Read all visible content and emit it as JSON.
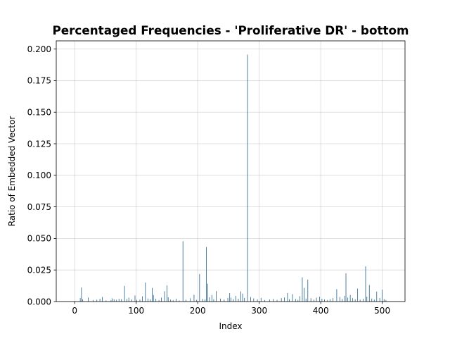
{
  "chart_data": {
    "type": "bar",
    "title": "Percentaged Frequencies - 'Proliferative DR' - bottom",
    "xlabel": "Index",
    "ylabel": "Ratio of Embedded Vector",
    "xlim": [
      -30,
      537
    ],
    "ylim": [
      0,
      0.2065
    ],
    "x_ticks": [
      0,
      100,
      200,
      300,
      400,
      500
    ],
    "x_tick_labels": [
      "0",
      "100",
      "200",
      "300",
      "400",
      "500"
    ],
    "y_ticks": [
      0,
      0.025,
      0.05,
      0.075,
      0.1,
      0.125,
      0.15,
      0.175,
      0.2
    ],
    "y_tick_labels": [
      "0.000",
      "0.025",
      "0.050",
      "0.075",
      "0.100",
      "0.125",
      "0.150",
      "0.175",
      "0.200"
    ],
    "grid": true,
    "bar_color": "#1f5f8b",
    "x": [
      9,
      11,
      13,
      22,
      30,
      36,
      41,
      45,
      51,
      59,
      61,
      64,
      68,
      72,
      76,
      81,
      85,
      88,
      93,
      98,
      101,
      106,
      110,
      115,
      119,
      123,
      126,
      128,
      132,
      137,
      141,
      146,
      150,
      152,
      156,
      160,
      165,
      170,
      176,
      181,
      188,
      194,
      198,
      203,
      208,
      212,
      214,
      216,
      219,
      223,
      226,
      230,
      237,
      243,
      249,
      252,
      254,
      258,
      262,
      266,
      270,
      273,
      276,
      281,
      286,
      291,
      297,
      303,
      309,
      317,
      323,
      329,
      336,
      341,
      346,
      349,
      354,
      359,
      363,
      366,
      370,
      373,
      376,
      379,
      384,
      389,
      393,
      398,
      402,
      406,
      411,
      415,
      420,
      426,
      431,
      435,
      439,
      441,
      444,
      448,
      452,
      456,
      460,
      464,
      469,
      473,
      475,
      479,
      483,
      487,
      491,
      496,
      500,
      503,
      506
    ],
    "values": [
      0.0028,
      0.0112,
      0.0018,
      0.0032,
      0.0012,
      0.0015,
      0.0022,
      0.0036,
      0.0009,
      0.0011,
      0.0025,
      0.0018,
      0.0014,
      0.0022,
      0.0019,
      0.0124,
      0.0021,
      0.0031,
      0.0017,
      0.0048,
      0.0013,
      0.0016,
      0.0041,
      0.0151,
      0.0024,
      0.0018,
      0.0108,
      0.0052,
      0.0022,
      0.0012,
      0.0031,
      0.0082,
      0.0128,
      0.0034,
      0.0016,
      0.0011,
      0.0023,
      0.0009,
      0.0478,
      0.0015,
      0.0026,
      0.0054,
      0.0013,
      0.0218,
      0.0021,
      0.0017,
      0.0432,
      0.0141,
      0.0034,
      0.0052,
      0.0019,
      0.0083,
      0.0024,
      0.0016,
      0.0028,
      0.0067,
      0.0031,
      0.0019,
      0.0045,
      0.0022,
      0.0081,
      0.0063,
      0.0028,
      0.1956,
      0.0036,
      0.0025,
      0.0018,
      0.0029,
      0.0012,
      0.0016,
      0.0021,
      0.0013,
      0.0027,
      0.0032,
      0.0068,
      0.0018,
      0.0059,
      0.0021,
      0.0013,
      0.0042,
      0.0192,
      0.0108,
      0.0024,
      0.0174,
      0.0026,
      0.0015,
      0.0031,
      0.0038,
      0.0022,
      0.0017,
      0.0012,
      0.0019,
      0.0028,
      0.0098,
      0.0036,
      0.0021,
      0.0045,
      0.0224,
      0.0031,
      0.0052,
      0.0027,
      0.0018,
      0.0103,
      0.0015,
      0.0022,
      0.0279,
      0.0038,
      0.0131,
      0.0024,
      0.0016,
      0.0079,
      0.0028,
      0.0094,
      0.0019,
      0.0012
    ]
  }
}
